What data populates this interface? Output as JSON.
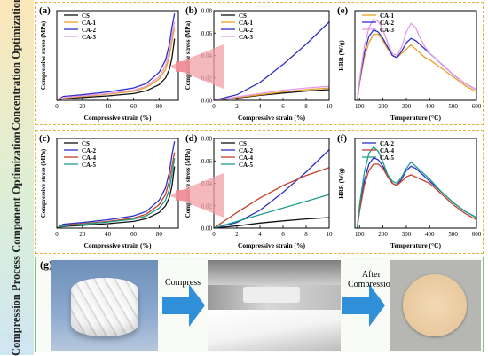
{
  "sections": {
    "concentration": "Concentration Optimization",
    "component": "Component Optimization",
    "compression": "Compression Process"
  },
  "colors": {
    "CS": "#111111",
    "CA-1": "#e8a020",
    "CA-2": "#3030c8",
    "CA-3": "#e49be6",
    "CA-4": "#c8422a",
    "CA-5": "#1f9e89",
    "arrow": "#2f8fd8",
    "zoom": "#f2a0a6",
    "frame": "#e0b040"
  },
  "panels": [
    {
      "letter": "(a)",
      "chart_data": {
        "type": "line",
        "xlabel": "Compressive strain (%)",
        "ylabel": "Compressive stress (MPa)",
        "xlim": [
          0,
          95
        ],
        "ylim": [
          0,
          1.6
        ],
        "xticks": [
          0,
          20,
          40,
          60,
          80
        ],
        "yticks": [],
        "series": [
          {
            "name": "CS",
            "x": [
              0,
              5,
              20,
              40,
              60,
              70,
              80,
              85,
              88,
              90,
              92
            ],
            "y": [
              0,
              0.03,
              0.05,
              0.08,
              0.12,
              0.17,
              0.28,
              0.4,
              0.55,
              0.75,
              1.1
            ]
          },
          {
            "name": "CA-1",
            "x": [
              0,
              5,
              20,
              40,
              60,
              70,
              80,
              85,
              88,
              90,
              92
            ],
            "y": [
              0,
              0.04,
              0.07,
              0.11,
              0.16,
              0.23,
              0.38,
              0.55,
              0.78,
              1.05,
              1.3
            ]
          },
          {
            "name": "CA-2",
            "x": [
              0,
              5,
              20,
              40,
              60,
              70,
              80,
              85,
              88,
              90,
              92
            ],
            "y": [
              0,
              0.07,
              0.1,
              0.15,
              0.22,
              0.3,
              0.5,
              0.72,
              1.0,
              1.3,
              1.55
            ]
          },
          {
            "name": "CA-3",
            "x": [
              0,
              5,
              20,
              40,
              60,
              70,
              80,
              85,
              88,
              90,
              92
            ],
            "y": [
              0,
              0.05,
              0.08,
              0.12,
              0.18,
              0.25,
              0.42,
              0.62,
              0.88,
              1.15,
              1.4
            ]
          }
        ]
      }
    },
    {
      "letter": "(b)",
      "chart_data": {
        "type": "line",
        "xlabel": "Compressive strain (%)",
        "ylabel": "Compressive stress (MPa)",
        "xlim": [
          0,
          10
        ],
        "ylim": [
          0,
          0.08
        ],
        "xticks": [
          0,
          2,
          4,
          6,
          8,
          10
        ],
        "yticks": [
          0.0,
          0.02,
          0.04,
          0.06,
          0.08
        ],
        "series": [
          {
            "name": "CS",
            "x": [
              0,
              2,
              4,
              6,
              8,
              10
            ],
            "y": [
              0,
              0.002,
              0.0045,
              0.0065,
              0.0082,
              0.0095
            ]
          },
          {
            "name": "CA-1",
            "x": [
              0,
              2,
              4,
              6,
              8,
              10
            ],
            "y": [
              0,
              0.0025,
              0.005,
              0.0075,
              0.0095,
              0.011
            ]
          },
          {
            "name": "CA-2",
            "x": [
              0,
              2,
              4,
              6,
              8,
              10
            ],
            "y": [
              0,
              0.005,
              0.016,
              0.032,
              0.05,
              0.07
            ]
          },
          {
            "name": "CA-3",
            "x": [
              0,
              2,
              4,
              6,
              8,
              10
            ],
            "y": [
              0,
              0.003,
              0.006,
              0.009,
              0.011,
              0.0125
            ]
          }
        ]
      }
    },
    {
      "letter": "(e)",
      "chart_data": {
        "type": "line",
        "xlabel": "Temperature (°C)",
        "ylabel": "HRR (W/g)",
        "xlim": [
          80,
          600
        ],
        "ylim": [
          0,
          42
        ],
        "xticks": [
          100,
          200,
          300,
          400,
          500,
          600
        ],
        "yticks": [],
        "series": [
          {
            "name": "CA-1",
            "x": [
              90,
              100,
              120,
              140,
              160,
              180,
              200,
              220,
              240,
              260,
              280,
              300,
              320,
              340,
              360,
              380,
              400,
              450,
              500,
              550,
              600
            ],
            "y": [
              0,
              8,
              20,
              27,
              31,
              31,
              28,
              24,
              21,
              20,
              22,
              24,
              26,
              24,
              22,
              20,
              19,
              15,
              11,
              7,
              4
            ]
          },
          {
            "name": "CA-2",
            "x": [
              90,
              100,
              120,
              140,
              160,
              180,
              200,
              220,
              240,
              260,
              280,
              300,
              320,
              340,
              360,
              380,
              400,
              450,
              500,
              550,
              600
            ],
            "y": [
              0,
              9,
              22,
              30,
              33,
              32,
              29,
              25,
              21,
              20,
              23,
              27,
              29,
              28,
              26,
              24,
              22,
              17,
              12,
              8,
              5
            ]
          },
          {
            "name": "CA-3",
            "x": [
              90,
              100,
              120,
              140,
              160,
              180,
              200,
              220,
              240,
              260,
              280,
              300,
              320,
              340,
              360,
              380,
              400,
              450,
              500,
              550,
              600
            ],
            "y": [
              0,
              10,
              25,
              34,
              38,
              37,
              33,
              27,
              22,
              21,
              25,
              32,
              36,
              34,
              29,
              25,
              22,
              17,
              12,
              8,
              5
            ]
          }
        ]
      }
    },
    {
      "letter": "(c)",
      "chart_data": {
        "type": "line",
        "xlabel": "Compressive strain (%)",
        "ylabel": "Compressive stress (MPa)",
        "xlim": [
          0,
          95
        ],
        "ylim": [
          0,
          1.6
        ],
        "xticks": [
          0,
          20,
          40,
          60,
          80
        ],
        "yticks": [],
        "series": [
          {
            "name": "CS",
            "x": [
              0,
              5,
              20,
              40,
              60,
              70,
              80,
              85,
              88,
              90,
              92
            ],
            "y": [
              0,
              0.03,
              0.05,
              0.08,
              0.12,
              0.17,
              0.28,
              0.4,
              0.55,
              0.75,
              1.1
            ]
          },
          {
            "name": "CA-2",
            "x": [
              0,
              5,
              20,
              40,
              60,
              70,
              80,
              85,
              88,
              90,
              92
            ],
            "y": [
              0,
              0.07,
              0.1,
              0.15,
              0.22,
              0.3,
              0.5,
              0.72,
              1.0,
              1.3,
              1.55
            ]
          },
          {
            "name": "CA-4",
            "x": [
              0,
              5,
              20,
              40,
              60,
              70,
              80,
              85,
              88,
              90,
              92
            ],
            "y": [
              0,
              0.05,
              0.08,
              0.12,
              0.18,
              0.25,
              0.42,
              0.6,
              0.85,
              1.1,
              1.35
            ]
          },
          {
            "name": "CA-5",
            "x": [
              0,
              5,
              20,
              40,
              60,
              70,
              80,
              85,
              88,
              90,
              92
            ],
            "y": [
              0,
              0.04,
              0.07,
              0.11,
              0.16,
              0.22,
              0.36,
              0.5,
              0.7,
              0.95,
              1.25
            ]
          }
        ]
      }
    },
    {
      "letter": "(d)",
      "chart_data": {
        "type": "line",
        "xlabel": "Compressive strain (%)",
        "ylabel": "Compressive stress (MPa)",
        "xlim": [
          0,
          10
        ],
        "ylim": [
          0,
          0.08
        ],
        "xticks": [
          0,
          2,
          4,
          6,
          8,
          10
        ],
        "yticks": [
          0.0,
          0.02,
          0.04,
          0.06,
          0.08
        ],
        "series": [
          {
            "name": "CS",
            "x": [
              0,
              2,
              4,
              6,
              8,
              10
            ],
            "y": [
              0,
              0.002,
              0.0045,
              0.0065,
              0.0082,
              0.0095
            ]
          },
          {
            "name": "CA-2",
            "x": [
              0,
              2,
              4,
              6,
              8,
              10
            ],
            "y": [
              0,
              0.005,
              0.016,
              0.032,
              0.05,
              0.07
            ]
          },
          {
            "name": "CA-4",
            "x": [
              0,
              2,
              4,
              6,
              8,
              10
            ],
            "y": [
              0,
              0.014,
              0.027,
              0.038,
              0.047,
              0.054
            ]
          },
          {
            "name": "CA-5",
            "x": [
              0,
              2,
              4,
              6,
              8,
              10
            ],
            "y": [
              0,
              0.006,
              0.012,
              0.018,
              0.024,
              0.03
            ]
          }
        ]
      }
    },
    {
      "letter": "(f)",
      "chart_data": {
        "type": "line",
        "xlabel": "Temperature (°C)",
        "ylabel": "HRR (W/g)",
        "xlim": [
          80,
          600
        ],
        "ylim": [
          0,
          42
        ],
        "xticks": [
          100,
          200,
          300,
          400,
          500,
          600
        ],
        "yticks": [],
        "series": [
          {
            "name": "CA-2",
            "x": [
              90,
              100,
              120,
              140,
              160,
              180,
              200,
              220,
              240,
              260,
              280,
              300,
              320,
              340,
              360,
              380,
              400,
              450,
              500,
              550,
              600
            ],
            "y": [
              0,
              9,
              22,
              30,
              33,
              32,
              29,
              25,
              21,
              20,
              23,
              27,
              29,
              28,
              26,
              24,
              22,
              17,
              12,
              8,
              5
            ]
          },
          {
            "name": "CA-4",
            "x": [
              90,
              100,
              120,
              140,
              160,
              180,
              200,
              220,
              240,
              260,
              280,
              300,
              320,
              340,
              360,
              380,
              400,
              450,
              500,
              550,
              600
            ],
            "y": [
              0,
              8,
              20,
              27,
              30,
              30,
              28,
              24,
              21,
              20,
              22,
              24,
              25,
              24,
              23,
              22,
              21,
              16,
              11,
              7,
              4
            ]
          },
          {
            "name": "CA-5",
            "x": [
              90,
              100,
              120,
              140,
              160,
              180,
              200,
              220,
              240,
              260,
              280,
              300,
              320,
              340,
              360,
              380,
              400,
              450,
              500,
              550,
              600
            ],
            "y": [
              0,
              11,
              26,
              35,
              38,
              36,
              31,
              25,
              22,
              21,
              24,
              28,
              31,
              29,
              27,
              25,
              23,
              17,
              12,
              8,
              5
            ]
          }
        ]
      }
    }
  ],
  "process": {
    "letter": "(g)",
    "step1": "Compress",
    "step2_line1": "After",
    "step2_line2": "Compression"
  }
}
